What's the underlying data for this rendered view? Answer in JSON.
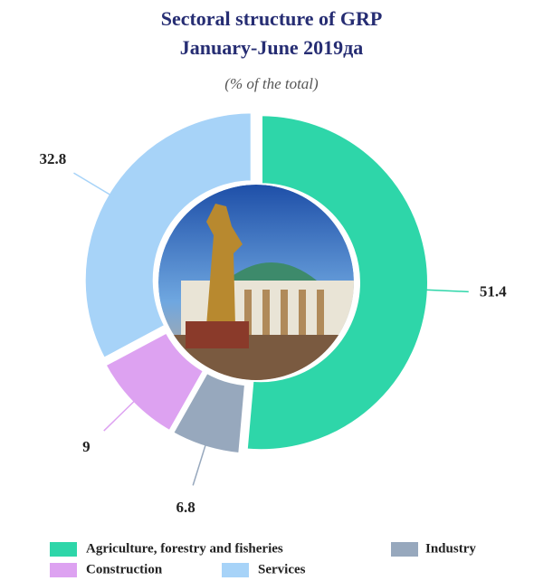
{
  "chart_data": {
    "type": "donut",
    "title": "Sectoral structure of GRP",
    "subtitle": "January-June 2019да",
    "note": "(% of the total)",
    "categories": [
      "Agriculture, forestry and fisheries",
      "Industry",
      "Construction",
      "Services"
    ],
    "values": [
      51.4,
      6.8,
      9,
      32.8
    ],
    "colors": [
      "#2ed6a9",
      "#97a8bd",
      "#dda2f1",
      "#a7d3f8"
    ]
  }
}
